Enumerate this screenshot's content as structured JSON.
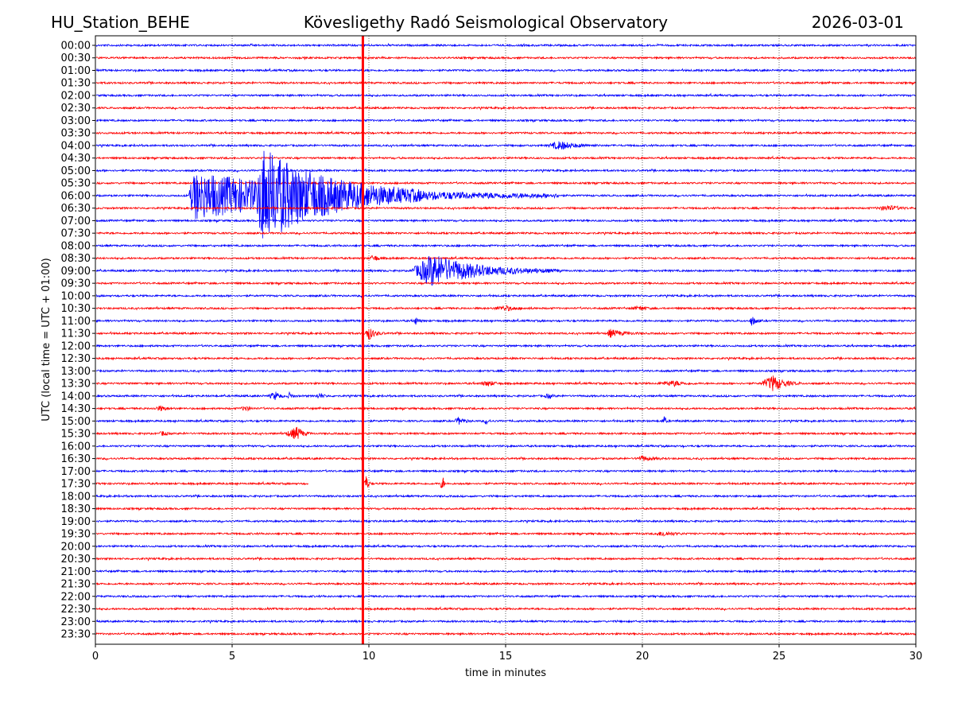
{
  "header": {
    "station": "HU_Station_BEHE",
    "observatory": "Kövesligethy Radó Seismological Observatory",
    "date": "2026-03-01"
  },
  "chart_data": {
    "type": "line",
    "title": "Kövesligethy Radó Seismological Observatory",
    "xlabel": "time in minutes",
    "ylabel": "UTC (local time = UTC + 01:00)",
    "xlim": [
      0,
      30
    ],
    "x_ticks": [
      "0",
      "5",
      "10",
      "15",
      "20",
      "25",
      "30"
    ],
    "x_tick_values": [
      0,
      5,
      10,
      15,
      20,
      25,
      30
    ],
    "grid": "vertical dotted at 5, 10, 15, 20, 25",
    "row_labels": [
      "00:00",
      "00:30",
      "01:00",
      "01:30",
      "02:00",
      "02:30",
      "03:00",
      "03:30",
      "04:00",
      "04:30",
      "05:00",
      "05:30",
      "06:00",
      "06:30",
      "07:00",
      "07:30",
      "08:00",
      "08:30",
      "09:00",
      "09:30",
      "10:00",
      "10:30",
      "11:00",
      "11:30",
      "12:00",
      "12:30",
      "13:00",
      "13:30",
      "14:00",
      "14:30",
      "15:00",
      "15:30",
      "16:00",
      "16:30",
      "17:00",
      "17:30",
      "18:00",
      "18:30",
      "19:00",
      "19:30",
      "20:00",
      "20:30",
      "21:00",
      "21:30",
      "22:00",
      "22:30",
      "23:00",
      "23:30"
    ],
    "trace_colors": [
      "#0000ff",
      "#ff0000"
    ],
    "marker_line": {
      "time_min": 9.78,
      "color": "#ff0000"
    },
    "events": [
      {
        "row": "04:00",
        "start": 16.5,
        "peak": 17.0,
        "end": 18.5,
        "amp": 5
      },
      {
        "row": "06:00",
        "start": 3.4,
        "peak": 3.6,
        "end": 17,
        "amp": 30
      },
      {
        "row": "06:00",
        "start": 5.9,
        "peak": 6.1,
        "end": 12,
        "amp": 45
      },
      {
        "row": "06:30",
        "start": 28.5,
        "peak": 29.0,
        "end": 30,
        "amp": 3
      },
      {
        "row": "08:30",
        "start": 10.0,
        "peak": 10.2,
        "end": 10.6,
        "amp": 4
      },
      {
        "row": "09:00",
        "start": 11.5,
        "peak": 12.3,
        "end": 17,
        "amp": 20
      },
      {
        "row": "10:30",
        "start": 14.5,
        "peak": 15.0,
        "end": 16,
        "amp": 3
      },
      {
        "row": "10:30",
        "start": 19.5,
        "peak": 20.0,
        "end": 20.5,
        "amp": 2
      },
      {
        "row": "11:00",
        "start": 11.6,
        "peak": 11.7,
        "end": 12.0,
        "amp": 5
      },
      {
        "row": "11:00",
        "start": 23.9,
        "peak": 24.0,
        "end": 24.4,
        "amp": 6
      },
      {
        "row": "11:30",
        "start": 9.8,
        "peak": 10.0,
        "end": 10.6,
        "amp": 8
      },
      {
        "row": "11:30",
        "start": 18.7,
        "peak": 18.8,
        "end": 20.0,
        "amp": 5
      },
      {
        "row": "13:30",
        "start": 14.0,
        "peak": 14.4,
        "end": 15.0,
        "amp": 3
      },
      {
        "row": "13:30",
        "start": 20.5,
        "peak": 21.2,
        "end": 22.0,
        "amp": 3
      },
      {
        "row": "13:30",
        "start": 24.3,
        "peak": 24.8,
        "end": 25.8,
        "amp": 10
      },
      {
        "row": "14:00",
        "start": 6.3,
        "peak": 6.6,
        "end": 7.0,
        "amp": 5
      },
      {
        "row": "14:00",
        "start": 7.0,
        "peak": 7.1,
        "end": 7.4,
        "amp": 4
      },
      {
        "row": "14:00",
        "start": 8.0,
        "peak": 8.2,
        "end": 8.6,
        "amp": 3
      },
      {
        "row": "14:00",
        "start": 16.4,
        "peak": 16.6,
        "end": 16.9,
        "amp": 3
      },
      {
        "row": "14:30",
        "start": 2.1,
        "peak": 2.4,
        "end": 3.0,
        "amp": 3
      },
      {
        "row": "14:30",
        "start": 5.3,
        "peak": 5.5,
        "end": 5.9,
        "amp": 3
      },
      {
        "row": "15:00",
        "start": 13.1,
        "peak": 13.3,
        "end": 13.8,
        "amp": 4
      },
      {
        "row": "15:00",
        "start": 14.2,
        "peak": 14.3,
        "end": 14.5,
        "amp": 4
      },
      {
        "row": "15:00",
        "start": 20.7,
        "peak": 20.8,
        "end": 21.0,
        "amp": 5
      },
      {
        "row": "15:30",
        "start": 2.3,
        "peak": 2.5,
        "end": 2.8,
        "amp": 3
      },
      {
        "row": "15:30",
        "start": 6.9,
        "peak": 7.4,
        "end": 7.9,
        "amp": 8
      },
      {
        "row": "16:30",
        "start": 19.7,
        "peak": 20.0,
        "end": 21.0,
        "amp": 3
      },
      {
        "row": "17:30",
        "start": 9.8,
        "peak": 9.9,
        "end": 10.1,
        "amp": 10
      },
      {
        "row": "17:30",
        "start": 12.6,
        "peak": 12.7,
        "end": 12.8,
        "amp": 12
      },
      {
        "row": "19:30",
        "start": 20.4,
        "peak": 20.8,
        "end": 21.6,
        "amp": 3
      }
    ],
    "gaps": [
      {
        "row": "17:30",
        "start": 7.8,
        "end": 9.75
      }
    ]
  }
}
